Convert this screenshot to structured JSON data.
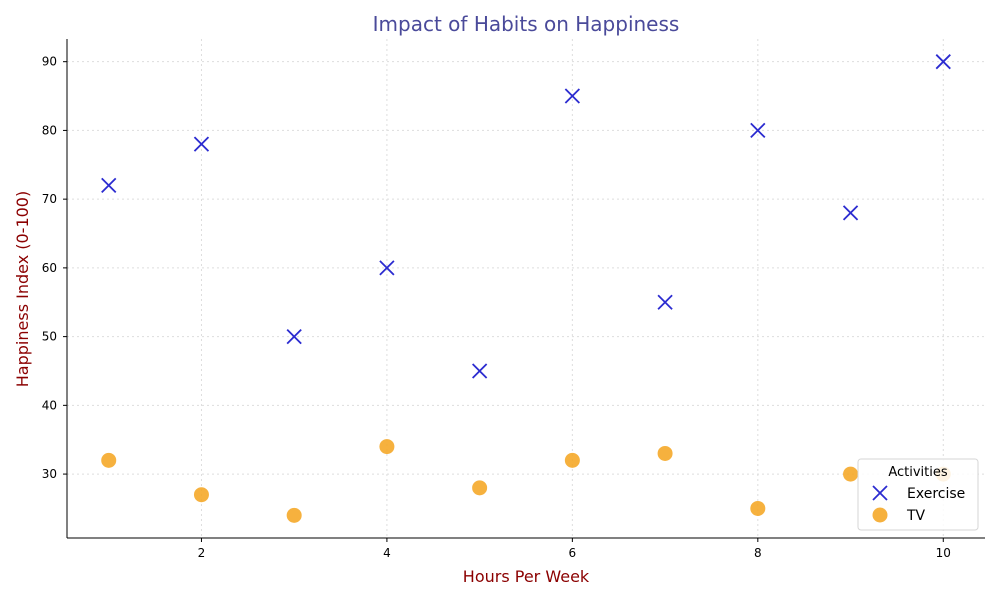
{
  "chart_data": {
    "type": "scatter",
    "title": "Impact of Habits on Happiness",
    "xlabel": "Hours Per Week",
    "ylabel": "Happiness Index (0-100)",
    "xlim": [
      0.55,
      10.45
    ],
    "ylim": [
      20.7,
      93.3
    ],
    "xticks": [
      2,
      4,
      6,
      8,
      10
    ],
    "yticks": [
      30,
      40,
      50,
      60,
      70,
      80,
      90
    ],
    "grid": true,
    "legend": {
      "title": "Activities",
      "placement": "bottom-right"
    },
    "series": [
      {
        "name": "Exercise",
        "marker": "x",
        "color": "#2b2bd0",
        "x": [
          1,
          2,
          3,
          4,
          5,
          6,
          7,
          8,
          9,
          10
        ],
        "y": [
          72,
          78,
          50,
          60,
          45,
          85,
          55,
          80,
          68,
          90
        ]
      },
      {
        "name": "TV",
        "marker": "circle",
        "color": "#f5a623",
        "x": [
          1,
          2,
          3,
          4,
          5,
          6,
          7,
          8,
          9,
          10
        ],
        "y": [
          32,
          27,
          24,
          34,
          28,
          32,
          33,
          25,
          30,
          30
        ]
      }
    ]
  }
}
